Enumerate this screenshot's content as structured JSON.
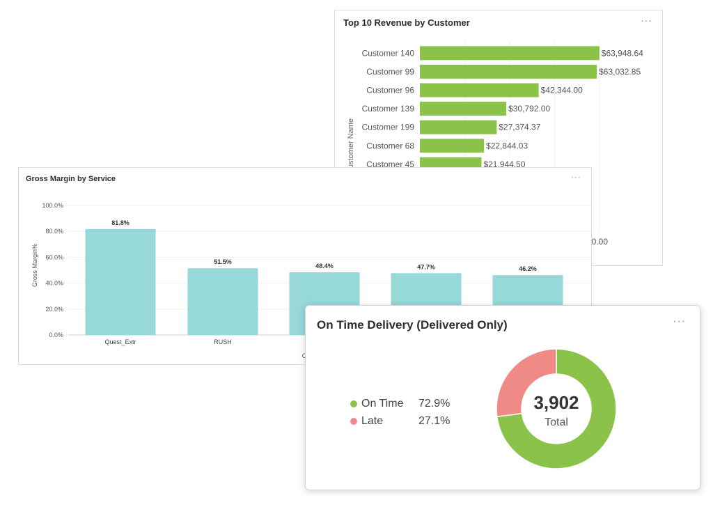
{
  "revenue_card": {
    "title": "Top 10 Revenue by Customer",
    "menu": "···",
    "chart_data": {
      "type": "bar",
      "orientation": "horizontal",
      "title": "Top 10 Revenue by Customer",
      "ylabel": "Customer Name",
      "xlabel": "",
      "categories": [
        "Customer 140",
        "Customer 99",
        "Customer 96",
        "Customer 139",
        "Customer 199",
        "Customer 68",
        "Customer 45"
      ],
      "values": [
        63948.64,
        63032.85,
        42344.0,
        30792.0,
        27374.37,
        22844.03,
        21944.5
      ],
      "data_labels": [
        "$63,948.64",
        "$63,032.85",
        "$42,344.00",
        "$30,792.00",
        "$27,374.37",
        "$22,844.03",
        "$21,944.50"
      ],
      "xlim": [
        0,
        64000
      ],
      "partial_tick_label": "00.00",
      "color": "#8bc34a"
    }
  },
  "gross_margin_card": {
    "title": "Gross Margin by Service",
    "menu": "···",
    "chart_data": {
      "type": "bar",
      "title": "Gross Margin by Service",
      "ylabel": "Gross Margin%",
      "xlabel": "",
      "categories": [
        "Quest_Extr",
        "RUSH",
        "",
        "",
        ""
      ],
      "values": [
        81.8,
        51.5,
        48.4,
        47.7,
        46.2
      ],
      "data_labels": [
        "81.8%",
        "51.5%",
        "48.4%",
        "47.7%",
        "46.2%"
      ],
      "yticks": [
        "0.0%",
        "20.0%",
        "40.0%",
        "60.0%",
        "80.0%",
        "100.0%"
      ],
      "ylim": [
        0,
        100
      ],
      "partial_axis_label": "C",
      "color": "#96d9d8"
    }
  },
  "otd_card": {
    "title": "On Time Delivery (Delivered Only)",
    "menu": "···",
    "legend": [
      {
        "label": "On Time",
        "value": "72.9%",
        "color": "#8bc34a"
      },
      {
        "label": "Late",
        "value": "27.1%",
        "color": "#f08a87"
      }
    ],
    "center_value": "3,902",
    "center_label": "Total",
    "chart_data": {
      "type": "pie",
      "style": "donut",
      "title": "On Time Delivery (Delivered Only)",
      "slices": [
        {
          "label": "On Time",
          "value": 72.9
        },
        {
          "label": "Late",
          "value": 27.1
        }
      ],
      "total": "3,902"
    }
  }
}
